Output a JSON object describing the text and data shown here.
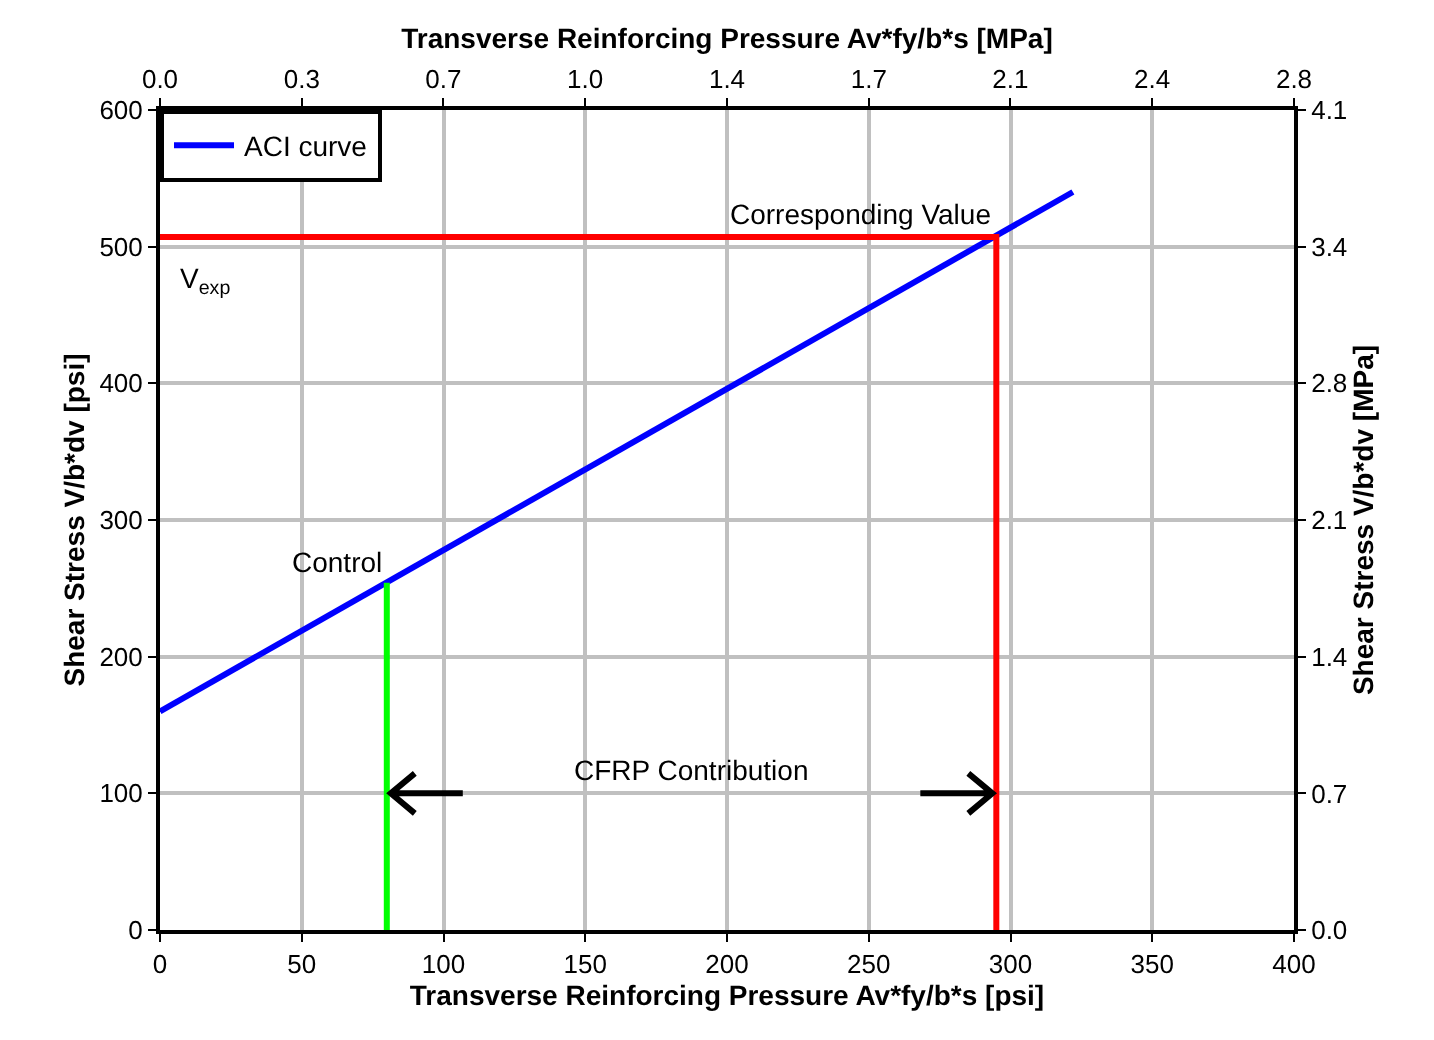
{
  "chart_data": {
    "type": "line",
    "xlabel": "Transverse Reinforcing Pressure Av*fy/b*s [psi]",
    "ylabel": "Shear Stress V/b*dv [psi]",
    "x2label": "Transverse Reinforcing Pressure Av*fy/b*s [MPa]",
    "y2label": "Shear Stress V/b*dv [MPa]",
    "series": [
      {
        "name": "ACI curve",
        "color": "#0000ff",
        "x": [
          0,
          322
        ],
        "values": [
          160,
          540
        ]
      },
      {
        "color": "#ff0000",
        "x": [
          0,
          295,
          295
        ],
        "values": [
          507,
          507,
          0
        ]
      },
      {
        "color": "#00ff00",
        "x": [
          80,
          80
        ],
        "values": [
          0,
          254
        ]
      }
    ],
    "xlim": [
      0,
      400
    ],
    "xticks": [
      0,
      50,
      100,
      150,
      200,
      250,
      300,
      350,
      400
    ],
    "ylim": [
      0,
      600
    ],
    "yticks": [
      0,
      100,
      200,
      300,
      400,
      500,
      600
    ],
    "x2lim": [
      0,
      2.758
    ],
    "x2ticks": [
      {
        "value": 0,
        "label": "0.0"
      },
      {
        "value": 0.345,
        "label": "0.3"
      },
      {
        "value": 0.689,
        "label": "0.7"
      },
      {
        "value": 1.034,
        "label": "1.0"
      },
      {
        "value": 1.379,
        "label": "1.4"
      },
      {
        "value": 1.724,
        "label": "1.7"
      },
      {
        "value": 2.068,
        "label": "2.1"
      },
      {
        "value": 2.413,
        "label": "2.4"
      },
      {
        "value": 2.758,
        "label": "2.8"
      }
    ],
    "y2lim": [
      0,
      4.137
    ],
    "y2ticks": [
      {
        "value": 0,
        "label": "0.0"
      },
      {
        "value": 0.689,
        "label": "0.7"
      },
      {
        "value": 1.379,
        "label": "1.4"
      },
      {
        "value": 2.068,
        "label": "2.1"
      },
      {
        "value": 2.758,
        "label": "2.8"
      },
      {
        "value": 3.447,
        "label": "3.4"
      },
      {
        "value": 4.137,
        "label": "4.1"
      }
    ],
    "annotations": [
      {
        "text": "Control",
        "x": 80,
        "y": 254
      },
      {
        "text": "Corresponding Value",
        "x": 295,
        "y": 507
      },
      {
        "text": "V$_{exp}$",
        "x": 0,
        "y": 507
      },
      "CFRP Contribution"
    ],
    "grid": true,
    "legend": "top left",
    "line_style": "solid",
    "marker": "none"
  }
}
